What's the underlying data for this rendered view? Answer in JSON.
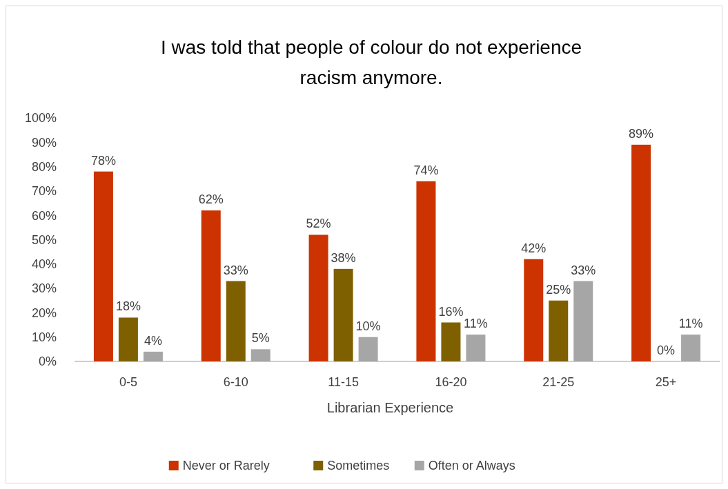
{
  "chart_data": {
    "type": "bar",
    "title": "I was told that people of colour do not experience racism anymore.",
    "xlabel": "Librarian Experience",
    "categories": [
      "0-5",
      "6-10",
      "11-15",
      "16-20",
      "21-25",
      "25+"
    ],
    "series": [
      {
        "name": "Never or Rarely",
        "color": "#cc3300",
        "values": [
          78,
          62,
          52,
          74,
          42,
          89
        ],
        "value_labels": [
          "78%",
          "62%",
          "52%",
          "74%",
          "42%",
          "89%"
        ]
      },
      {
        "name": "Sometimes",
        "color": "#7f6000",
        "values": [
          18,
          33,
          38,
          16,
          25,
          0
        ],
        "value_labels": [
          "18%",
          "33%",
          "38%",
          "16%",
          "25%",
          "0%"
        ]
      },
      {
        "name": "Often or Always",
        "color": "#a6a6a6",
        "values": [
          4,
          5,
          10,
          11,
          33,
          11
        ],
        "value_labels": [
          "4%",
          "5%",
          "10%",
          "11%",
          "33%",
          "11%"
        ]
      }
    ],
    "ylim": [
      0,
      100
    ],
    "yticks": [
      {
        "value": 0,
        "label": "0%"
      },
      {
        "value": 10,
        "label": "10%"
      },
      {
        "value": 20,
        "label": "20%"
      },
      {
        "value": 30,
        "label": "30%"
      },
      {
        "value": 40,
        "label": "40%"
      },
      {
        "value": 50,
        "label": "50%"
      },
      {
        "value": 60,
        "label": "60%"
      },
      {
        "value": 70,
        "label": "70%"
      },
      {
        "value": 80,
        "label": "80%"
      },
      {
        "value": 90,
        "label": "90%"
      },
      {
        "value": 100,
        "label": "100%"
      }
    ],
    "grid": false,
    "legend": "bottom"
  }
}
